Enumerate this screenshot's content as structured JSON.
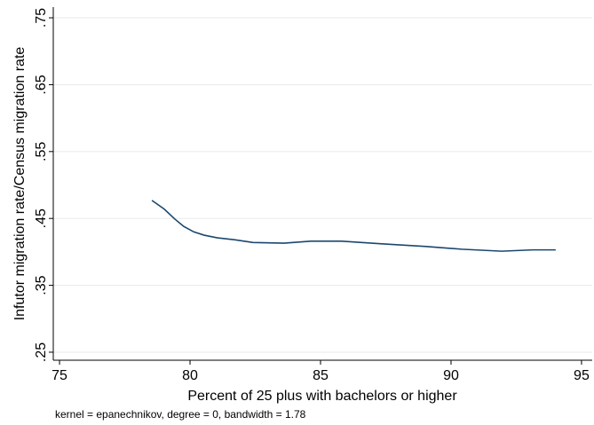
{
  "chart_data": {
    "type": "line",
    "x_label": "Percent of 25 plus with bachelors or higher",
    "y_label": "Infutor migration rate/Census migration rate",
    "note": "kernel = epanechnikov, degree = 0, bandwidth = 1.78",
    "x": [
      78.54,
      79.01,
      79.42,
      79.76,
      80.14,
      80.54,
      81.05,
      81.73,
      82.41,
      83.6,
      84.63,
      85.8,
      87.35,
      89.05,
      90.41,
      91.94,
      93.13,
      94.01
    ],
    "series": [
      {
        "color": "#1a476f",
        "values": [
          0.477,
          0.464,
          0.449,
          0.438,
          0.43,
          0.425,
          0.421,
          0.418,
          0.414,
          0.413,
          0.416,
          0.416,
          0.412,
          0.408,
          0.404,
          0.401,
          0.403,
          0.403
        ]
      }
    ],
    "xlim": [
      74.76,
      95.41
    ],
    "xticks": [
      75,
      80,
      85,
      90,
      95
    ],
    "ylim": [
      0.238,
      0.766
    ],
    "yticks": [
      {
        "value": 0.25,
        "label": ".25"
      },
      {
        "value": 0.35,
        "label": ".35"
      },
      {
        "value": 0.45,
        "label": ".45"
      },
      {
        "value": 0.55,
        "label": ".55"
      },
      {
        "value": 0.65,
        "label": ".65"
      },
      {
        "value": 0.75,
        "label": ".75"
      }
    ],
    "grid": true
  }
}
